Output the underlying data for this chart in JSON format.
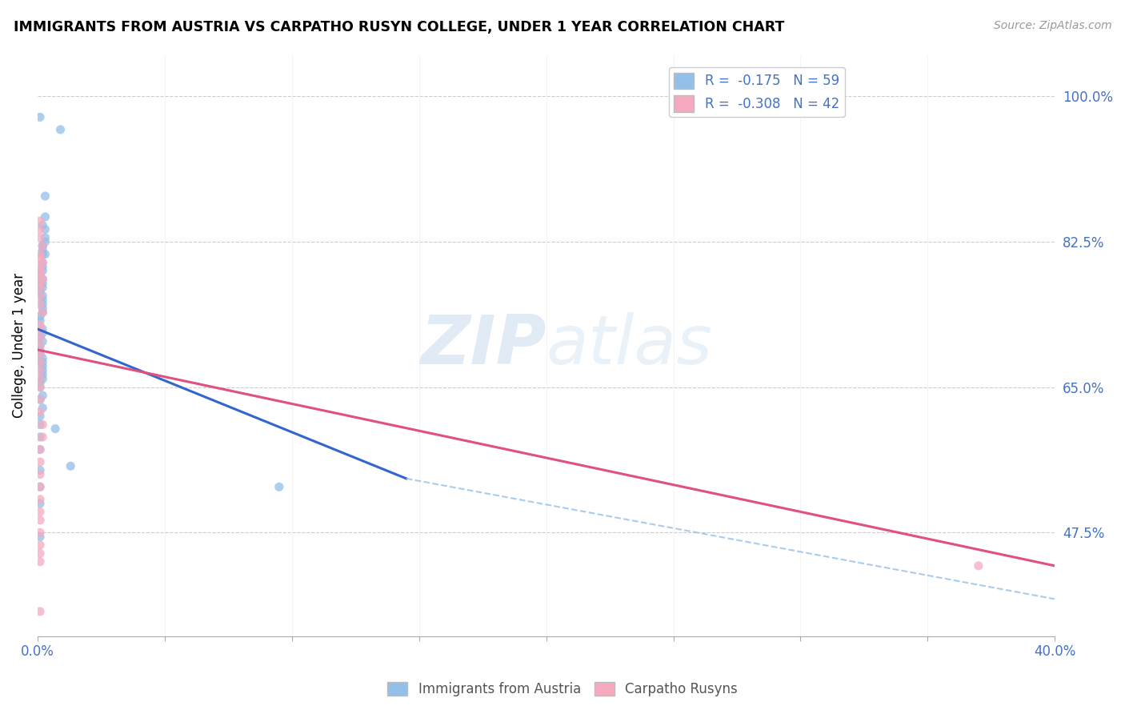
{
  "title": "IMMIGRANTS FROM AUSTRIA VS CARPATHO RUSYN COLLEGE, UNDER 1 YEAR CORRELATION CHART",
  "source": "Source: ZipAtlas.com",
  "ylabel": "College, Under 1 year",
  "right_ytick_labels": [
    "100.0%",
    "82.5%",
    "65.0%",
    "47.5%"
  ],
  "right_yticks_pct": [
    1.0,
    0.825,
    0.65,
    0.475
  ],
  "legend_label1": "R =  -0.175   N = 59",
  "legend_label2": "R =  -0.308   N = 42",
  "legend_bottom_label1": "Immigrants from Austria",
  "legend_bottom_label2": "Carpatho Rusyns",
  "blue_color": "#92C0E8",
  "pink_color": "#F5AABF",
  "blue_line_color": "#3366CC",
  "pink_line_color": "#E05080",
  "dashed_color": "#92C0E8",
  "scatter_blue_x": [
    0.001,
    0.009,
    0.003,
    0.003,
    0.002,
    0.003,
    0.003,
    0.003,
    0.002,
    0.002,
    0.002,
    0.002,
    0.003,
    0.002,
    0.002,
    0.002,
    0.001,
    0.002,
    0.002,
    0.001,
    0.002,
    0.001,
    0.002,
    0.002,
    0.002,
    0.002,
    0.002,
    0.001,
    0.001,
    0.002,
    0.002,
    0.001,
    0.002,
    0.001,
    0.001,
    0.001,
    0.002,
    0.001,
    0.002,
    0.002,
    0.002,
    0.002,
    0.002,
    0.001,
    0.001,
    0.002,
    0.001,
    0.002,
    0.001,
    0.001,
    0.007,
    0.001,
    0.001,
    0.013,
    0.001,
    0.001,
    0.001,
    0.001,
    0.095
  ],
  "scatter_blue_y": [
    0.975,
    0.96,
    0.88,
    0.855,
    0.845,
    0.84,
    0.83,
    0.825,
    0.82,
    0.82,
    0.815,
    0.81,
    0.81,
    0.8,
    0.795,
    0.79,
    0.785,
    0.78,
    0.775,
    0.775,
    0.77,
    0.765,
    0.76,
    0.755,
    0.75,
    0.745,
    0.74,
    0.735,
    0.73,
    0.72,
    0.715,
    0.71,
    0.705,
    0.7,
    0.695,
    0.69,
    0.685,
    0.68,
    0.68,
    0.675,
    0.67,
    0.665,
    0.66,
    0.655,
    0.65,
    0.64,
    0.635,
    0.625,
    0.615,
    0.605,
    0.6,
    0.59,
    0.575,
    0.555,
    0.55,
    0.53,
    0.51,
    0.47,
    0.53
  ],
  "scatter_pink_x": [
    0.001,
    0.001,
    0.001,
    0.002,
    0.001,
    0.001,
    0.002,
    0.001,
    0.001,
    0.001,
    0.002,
    0.001,
    0.001,
    0.001,
    0.001,
    0.002,
    0.001,
    0.001,
    0.001,
    0.001,
    0.001,
    0.001,
    0.001,
    0.001,
    0.001,
    0.001,
    0.001,
    0.002,
    0.002,
    0.001,
    0.001,
    0.001,
    0.001,
    0.001,
    0.001,
    0.001,
    0.001,
    0.001,
    0.001,
    0.001,
    0.37,
    0.001
  ],
  "scatter_pink_y": [
    0.85,
    0.84,
    0.83,
    0.82,
    0.81,
    0.805,
    0.8,
    0.795,
    0.79,
    0.785,
    0.78,
    0.775,
    0.77,
    0.76,
    0.75,
    0.74,
    0.725,
    0.72,
    0.71,
    0.7,
    0.69,
    0.68,
    0.67,
    0.66,
    0.65,
    0.635,
    0.62,
    0.605,
    0.59,
    0.575,
    0.56,
    0.545,
    0.53,
    0.515,
    0.5,
    0.49,
    0.475,
    0.46,
    0.45,
    0.44,
    0.435,
    0.38
  ],
  "blue_line_x": [
    0.0,
    0.145
  ],
  "blue_line_y": [
    0.72,
    0.54
  ],
  "pink_line_x": [
    0.0,
    0.4
  ],
  "pink_line_y": [
    0.695,
    0.435
  ],
  "dashed_line_x": [
    0.145,
    0.4
  ],
  "dashed_line_y": [
    0.54,
    0.395
  ],
  "xlim": [
    0.0,
    0.4
  ],
  "ylim": [
    0.35,
    1.05
  ],
  "watermark_zip": "ZIP",
  "watermark_atlas": "atlas"
}
